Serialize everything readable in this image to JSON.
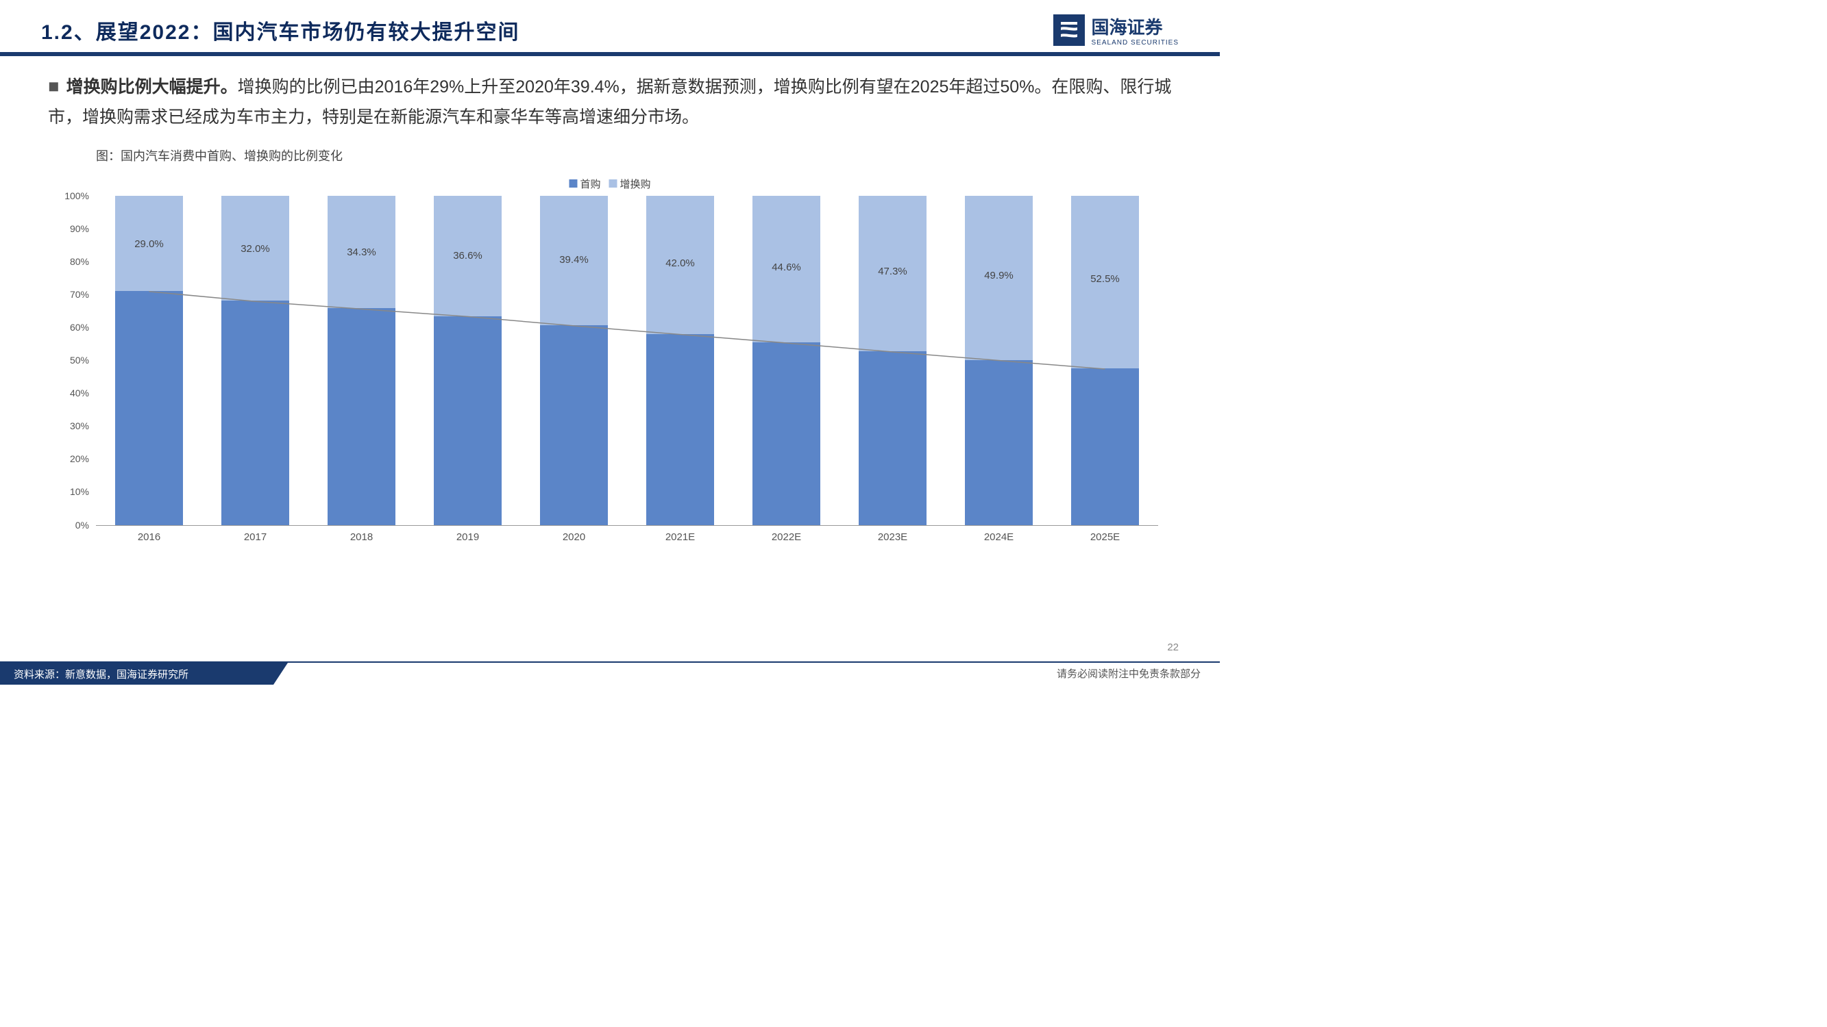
{
  "header": {
    "title": "1.2、展望2022：国内汽车市场仍有较大提升空间",
    "logo_cn": "国海证券",
    "logo_en": "SEALAND SECURITIES"
  },
  "body": {
    "bold_lead": "增换购比例大幅提升。",
    "text": "增换购的比例已由2016年29%上升至2020年39.4%，据新意数据预测，增换购比例有望在2025年超过50%。在限购、限行城市，增换购需求已经成为车市主力，特别是在新能源汽车和豪华车等高增速细分市场。"
  },
  "chart": {
    "title": "图：国内汽车消费中首购、增换购的比例变化",
    "type": "stacked-bar-100",
    "legend": [
      {
        "label": "首购",
        "color": "#5b85c8"
      },
      {
        "label": "增换购",
        "color": "#aac1e4"
      }
    ],
    "categories": [
      "2016",
      "2017",
      "2018",
      "2019",
      "2020",
      "2021E",
      "2022E",
      "2023E",
      "2024E",
      "2025E"
    ],
    "series_top_pct": [
      29.0,
      32.0,
      34.3,
      36.6,
      39.4,
      42.0,
      44.6,
      47.3,
      49.9,
      52.5
    ],
    "series_top_labels": [
      "29.0%",
      "32.0%",
      "34.3%",
      "36.6%",
      "39.4%",
      "42.0%",
      "44.6%",
      "47.3%",
      "49.9%",
      "52.5%"
    ],
    "y_ticks": [
      0,
      10,
      20,
      30,
      40,
      50,
      60,
      70,
      80,
      90,
      100
    ],
    "y_tick_labels": [
      "0%",
      "10%",
      "20%",
      "30%",
      "40%",
      "50%",
      "60%",
      "70%",
      "80%",
      "90%",
      "100%"
    ],
    "ylim": [
      0,
      100
    ],
    "trend_color": "#888888",
    "background_color": "#ffffff",
    "axis_color": "#999999",
    "label_fontsize": 15,
    "title_fontsize": 18
  },
  "footer": {
    "left": "资料来源：新意数据，国海证券研究所",
    "right": "请务必阅读附注中免责条款部分",
    "page_number": "22"
  },
  "colors": {
    "brand_navy": "#1a3a6e",
    "title_navy": "#0e2a5c"
  }
}
